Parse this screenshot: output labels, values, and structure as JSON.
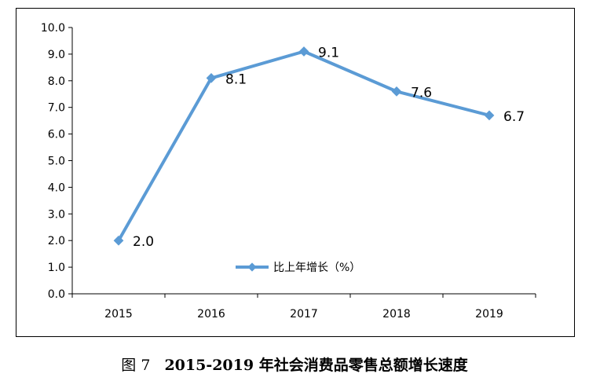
{
  "chart_data": {
    "type": "line",
    "categories": [
      "2015",
      "2016",
      "2017",
      "2018",
      "2019"
    ],
    "series": [
      {
        "name": "比上年增长（%）",
        "values": [
          2.0,
          8.1,
          9.1,
          7.6,
          6.7
        ],
        "color": "#5b9bd5"
      }
    ],
    "data_labels": [
      "2.0",
      "8.1",
      "9.1",
      "7.6",
      "6.7"
    ],
    "ylim": [
      0,
      10
    ],
    "yticks": [
      "0.0",
      "1.0",
      "2.0",
      "3.0",
      "4.0",
      "5.0",
      "6.0",
      "7.0",
      "8.0",
      "9.0",
      "10.0"
    ],
    "grid": false,
    "legend": "inside-bottom-center"
  },
  "caption": {
    "figure_label": "图 7",
    "title": "2015-2019 年社会消费品零售总额增长速度"
  }
}
